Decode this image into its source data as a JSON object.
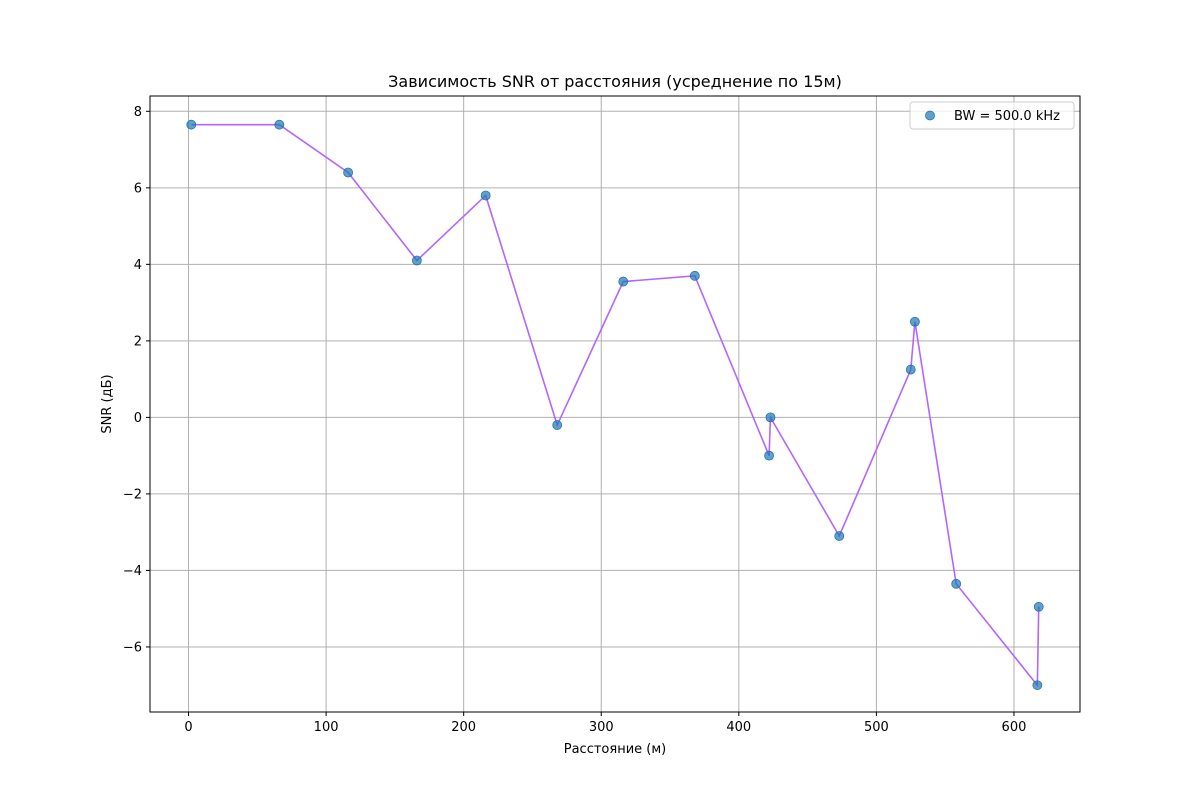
{
  "chart_data": {
    "type": "scatter",
    "title": "Зависимость SNR от расстояния (усреднение по 15м)",
    "xlabel": "Расстояние (м)",
    "ylabel": "SNR (дБ)",
    "xlim": [
      -28,
      648
    ],
    "ylim": [
      -7.7,
      8.4
    ],
    "xticks": [
      0,
      100,
      200,
      300,
      400,
      500,
      600
    ],
    "yticks": [
      -6,
      -4,
      -2,
      0,
      2,
      4,
      6,
      8
    ],
    "ytick_labels": [
      "−6",
      "−4",
      "−2",
      "0",
      "2",
      "4",
      "6",
      "8"
    ],
    "grid": true,
    "legend_position": "top-right",
    "series": [
      {
        "name": "BW = 500.0 kHz",
        "marker_color": "#1f77b4",
        "line_color": "#b266ff",
        "x": [
          2,
          66,
          116,
          166,
          216,
          268,
          316,
          368,
          422,
          423,
          473,
          525,
          528,
          558,
          617,
          618
        ],
        "y": [
          7.65,
          7.65,
          6.4,
          4.1,
          5.8,
          -0.2,
          3.55,
          3.7,
          -1.0,
          0.0,
          -3.1,
          1.25,
          2.5,
          -4.35,
          -7.0,
          -4.95
        ]
      }
    ]
  }
}
